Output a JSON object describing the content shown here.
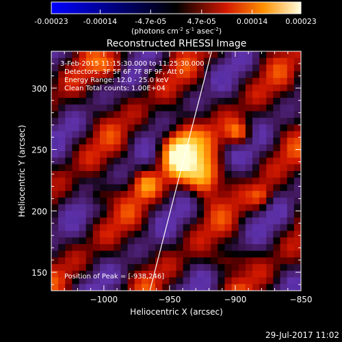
{
  "colorbar": {
    "ticks": [
      "-0.00023",
      "-0.00014",
      "-4.7e-05",
      "4.7e-05",
      "0.00014",
      "0.00023"
    ],
    "tick_values": [
      -0.00023,
      -0.00014,
      -4.7e-05,
      4.7e-05,
      0.00014,
      0.00023
    ],
    "range": [
      -0.00023,
      0.00023
    ],
    "units_text": "(photons cm",
    "units_exp1": "-2",
    "units_mid": " s",
    "units_exp2": "-1",
    "units_mid2": " asec",
    "units_exp3": "-2",
    "units_close": ")"
  },
  "chart_data": {
    "type": "heatmap",
    "title": "Reconstructed RHESSI Image",
    "xlabel": "Heliocentric X (arcsec)",
    "ylabel": "Heliocentric Y (arcsec)",
    "xlim": [
      -1040,
      -850
    ],
    "ylim": [
      135,
      330
    ],
    "x_ticks": [
      -1000,
      -950,
      -900,
      -850
    ],
    "y_ticks": [
      150,
      200,
      250,
      300
    ],
    "x_tick_labels": [
      "−1000",
      "−950",
      "−900",
      "−850"
    ],
    "y_tick_labels": [
      "150",
      "200",
      "250",
      "300"
    ],
    "annotations": [
      "3-Feb-2015 11:15:30.000 to 11:25:30.000",
      "Detectors: 3F 5F 6F 7F 8F 9F, Att 0",
      "Energy Range: 12.0 - 25.0 keV",
      "Clean     Total counts: 1.00E+04"
    ],
    "peak_label": "Position of Peak = [-938,246]",
    "peak": [
      -938,
      246
    ],
    "limb_line": [
      [
        -965,
        135
      ],
      [
        -918,
        330
      ]
    ],
    "sources": [
      {
        "x": -943,
        "y": 248,
        "amp": 1.0,
        "sx": 10,
        "sy": 14
      },
      {
        "x": -923,
        "y": 228,
        "amp": 0.8,
        "sx": 9,
        "sy": 11
      },
      {
        "x": -897,
        "y": 263,
        "amp": 0.55,
        "sx": 7,
        "sy": 7
      },
      {
        "x": -968,
        "y": 222,
        "amp": 0.45,
        "sx": 7,
        "sy": 8
      },
      {
        "x": -1005,
        "y": 212,
        "amp": 0.35,
        "sx": 7,
        "sy": 6
      },
      {
        "x": -992,
        "y": 318,
        "amp": 0.4,
        "sx": 8,
        "sy": 7
      },
      {
        "x": -880,
        "y": 212,
        "amp": 0.4,
        "sx": 6,
        "sy": 7
      },
      {
        "x": -905,
        "y": 160,
        "amp": 0.3,
        "sx": 9,
        "sy": 6
      }
    ]
  },
  "footer": {
    "timestamp": "29-Jul-2017 11:02"
  }
}
